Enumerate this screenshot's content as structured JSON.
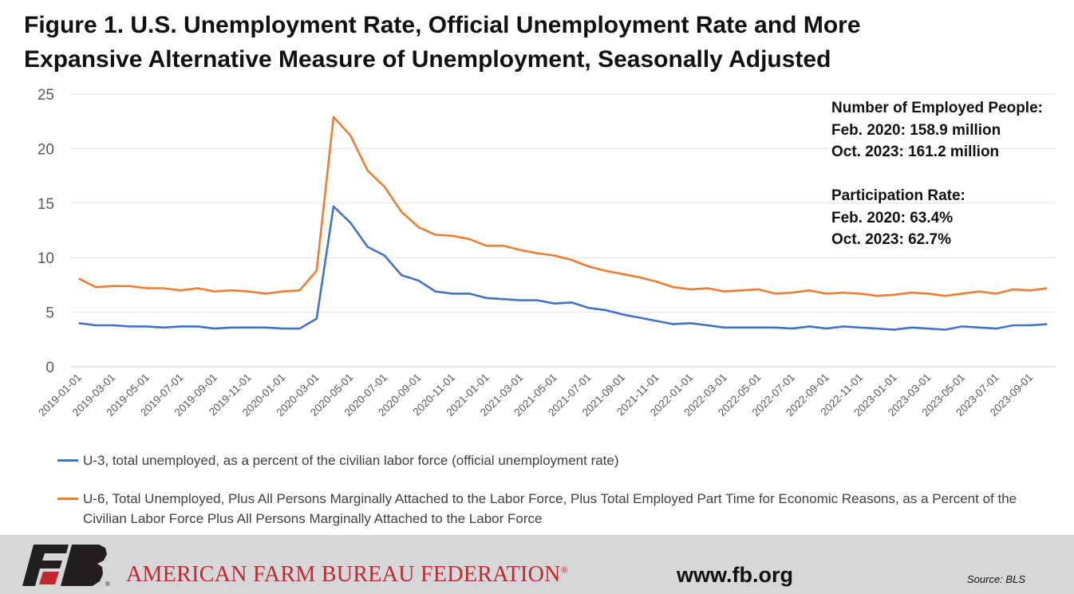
{
  "title": {
    "line1": "Figure 1. U.S. Unemployment Rate, Official Unemployment Rate and More",
    "line2": "Expansive Alternative Measure of Unemployment, Seasonally Adjusted"
  },
  "chart_data": {
    "type": "line",
    "title": "Figure 1. U.S. Unemployment Rate, Official Unemployment Rate and More Expansive Alternative Measure of Unemployment, Seasonally Adjusted",
    "ylim": [
      0,
      25
    ],
    "yticks": [
      0,
      5,
      10,
      15,
      20,
      25
    ],
    "grid": true,
    "legend_position": "bottom",
    "x": [
      "2019-01-01",
      "2019-02-01",
      "2019-03-01",
      "2019-04-01",
      "2019-05-01",
      "2019-06-01",
      "2019-07-01",
      "2019-08-01",
      "2019-09-01",
      "2019-10-01",
      "2019-11-01",
      "2019-12-01",
      "2020-01-01",
      "2020-02-01",
      "2020-03-01",
      "2020-04-01",
      "2020-05-01",
      "2020-06-01",
      "2020-07-01",
      "2020-08-01",
      "2020-09-01",
      "2020-10-01",
      "2020-11-01",
      "2020-12-01",
      "2021-01-01",
      "2021-02-01",
      "2021-03-01",
      "2021-04-01",
      "2021-05-01",
      "2021-06-01",
      "2021-07-01",
      "2021-08-01",
      "2021-09-01",
      "2021-10-01",
      "2021-11-01",
      "2021-12-01",
      "2022-01-01",
      "2022-02-01",
      "2022-03-01",
      "2022-04-01",
      "2022-05-01",
      "2022-06-01",
      "2022-07-01",
      "2022-08-01",
      "2022-09-01",
      "2022-10-01",
      "2022-11-01",
      "2022-12-01",
      "2023-01-01",
      "2023-02-01",
      "2023-03-01",
      "2023-04-01",
      "2023-05-01",
      "2023-06-01",
      "2023-07-01",
      "2023-08-01",
      "2023-09-01",
      "2023-10-01"
    ],
    "xtick_labels": [
      "2019-01-01",
      "2019-03-01",
      "2019-05-01",
      "2019-07-01",
      "2019-09-01",
      "2019-11-01",
      "2020-01-01",
      "2020-03-01",
      "2020-05-01",
      "2020-07-01",
      "2020-09-01",
      "2020-11-01",
      "2021-01-01",
      "2021-03-01",
      "2021-05-01",
      "2021-07-01",
      "2021-09-01",
      "2021-11-01",
      "2022-01-01",
      "2022-03-01",
      "2022-05-01",
      "2022-07-01",
      "2022-09-01",
      "2022-11-01",
      "2023-01-01",
      "2023-03-01",
      "2023-05-01",
      "2023-07-01",
      "2023-09-01"
    ],
    "series": [
      {
        "name": "U-3, total unemployed, as a percent of the civilian labor force (official unemployment rate)",
        "color": "#4472c4",
        "values": [
          4.0,
          3.8,
          3.8,
          3.7,
          3.7,
          3.6,
          3.7,
          3.7,
          3.5,
          3.6,
          3.6,
          3.6,
          3.5,
          3.5,
          4.4,
          14.7,
          13.2,
          11.0,
          10.2,
          8.4,
          7.9,
          6.9,
          6.7,
          6.7,
          6.3,
          6.2,
          6.1,
          6.1,
          5.8,
          5.9,
          5.4,
          5.2,
          4.8,
          4.5,
          4.2,
          3.9,
          4.0,
          3.8,
          3.6,
          3.6,
          3.6,
          3.6,
          3.5,
          3.7,
          3.5,
          3.7,
          3.6,
          3.5,
          3.4,
          3.6,
          3.5,
          3.4,
          3.7,
          3.6,
          3.5,
          3.8,
          3.8,
          3.9
        ]
      },
      {
        "name": "U-6, Total Unemployed, Plus All Persons Marginally Attached to the Labor Force, Plus Total Employed Part Time for Economic Reasons, as a Percent of the Civilian Labor Force Plus All Persons Marginally Attached to the Labor Force",
        "color": "#ed7d31",
        "values": [
          8.1,
          7.3,
          7.4,
          7.4,
          7.2,
          7.2,
          7.0,
          7.2,
          6.9,
          7.0,
          6.9,
          6.7,
          6.9,
          7.0,
          8.8,
          22.9,
          21.2,
          18.0,
          16.5,
          14.2,
          12.8,
          12.1,
          12.0,
          11.7,
          11.1,
          11.1,
          10.7,
          10.4,
          10.2,
          9.8,
          9.2,
          8.8,
          8.5,
          8.2,
          7.8,
          7.3,
          7.1,
          7.2,
          6.9,
          7.0,
          7.1,
          6.7,
          6.8,
          7.0,
          6.7,
          6.8,
          6.7,
          6.5,
          6.6,
          6.8,
          6.7,
          6.5,
          6.7,
          6.9,
          6.7,
          7.1,
          7.0,
          7.2
        ]
      }
    ]
  },
  "annotation": {
    "employed_heading": "Number of Employed People:",
    "employed_feb": "Feb. 2020: 158.9 million",
    "employed_oct": "Oct. 2023: 161.2 million",
    "participation_heading": "Participation Rate:",
    "participation_feb": "Feb. 2020: 63.4%",
    "participation_oct": "Oct. 2023: 62.7%"
  },
  "legend": {
    "u3_label": "U-3, total unemployed, as a percent of the civilian labor force (official unemployment rate)",
    "u6_label": "U-6, Total Unemployed, Plus All Persons Marginally Attached to the Labor Force, Plus Total Employed Part Time for Economic Reasons, as a Percent of the Civilian Labor Force Plus All Persons Marginally Attached to the Labor Force"
  },
  "footer": {
    "logo_text": "FB",
    "organization": "AMERICAN FARM BUREAU FEDERATION",
    "registered_mark": "®",
    "website": "www.fb.org",
    "source": "Source: BLS",
    "brand_color": "#c1272d",
    "background": "#d6d7d8"
  }
}
